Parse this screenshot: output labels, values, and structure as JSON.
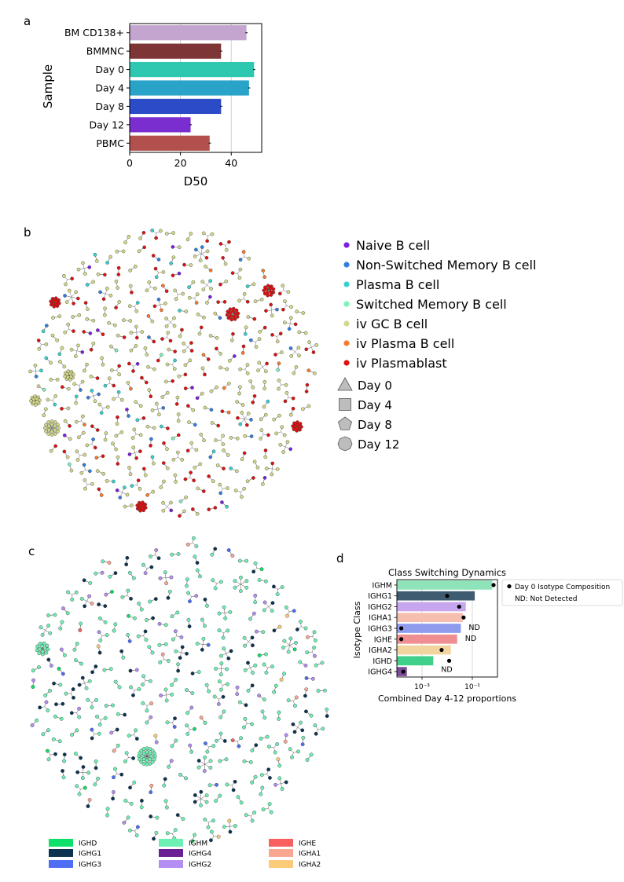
{
  "panel_labels": {
    "a": "a",
    "b": "b",
    "c": "c",
    "d": "d"
  },
  "chart_data": [
    {
      "type": "bar",
      "orientation": "horizontal",
      "panel": "a",
      "title": "",
      "xlabel": "D50",
      "ylabel": "Sample",
      "categories": [
        "BM CD138+",
        "BMMNC",
        "Day 0",
        "Day 4",
        "Day 8",
        "Day 12",
        "PBMC"
      ],
      "values": [
        46,
        36,
        49,
        47,
        36,
        24,
        31.5
      ],
      "colors": [
        "#c3a5cf",
        "#7d3535",
        "#2ec8b0",
        "#2aa3c9",
        "#2b4bc7",
        "#7b2ecf",
        "#b1504c"
      ],
      "xlim": [
        0,
        52
      ],
      "xticks": [
        0,
        20,
        40
      ],
      "grid": true
    },
    {
      "type": "network",
      "panel": "b",
      "legend_cell_types": [
        {
          "label": "Naive B cell",
          "color": "#7b1fe0"
        },
        {
          "label": "Non-Switched Memory B cell",
          "color": "#2f7fe0"
        },
        {
          "label": "Plasma B cell",
          "color": "#35d2d2"
        },
        {
          "label": "Switched Memory B cell",
          "color": "#7ef2b8"
        },
        {
          "label": "iv GC B cell",
          "color": "#d3d98a"
        },
        {
          "label": "iv Plasma B cell",
          "color": "#f97a2e"
        },
        {
          "label": "iv Plasmablast",
          "color": "#e01010"
        }
      ],
      "legend_timepoints": [
        {
          "label": "Day 0",
          "shape": "triangle"
        },
        {
          "label": "Day 4",
          "shape": "square"
        },
        {
          "label": "Day 8",
          "shape": "pentagon"
        },
        {
          "label": "Day 12",
          "shape": "octagon"
        }
      ]
    },
    {
      "type": "network",
      "panel": "c",
      "legend_isotypes": [
        {
          "label": "IGHD",
          "color": "#0ee06a"
        },
        {
          "label": "IGHM",
          "color": "#6ef0b4"
        },
        {
          "label": "IGHE",
          "color": "#f85f5f"
        },
        {
          "label": "IGHG1",
          "color": "#0c3352"
        },
        {
          "label": "IGHG4",
          "color": "#6b1f94"
        },
        {
          "label": "IGHA1",
          "color": "#f9a790"
        },
        {
          "label": "IGHG3",
          "color": "#4f6ef5"
        },
        {
          "label": "IGHG2",
          "color": "#b48ef2"
        },
        {
          "label": "IGHA2",
          "color": "#fbcb7a"
        }
      ]
    },
    {
      "type": "bar",
      "orientation": "horizontal",
      "panel": "d",
      "title": "Class Switching Dynamics",
      "xlabel": "Combined Day 4-12 proportions",
      "ylabel": "Isotype Class",
      "xscale": "log",
      "xlim": [
        0.0001,
        1.0
      ],
      "xticks": [
        0.001,
        0.1
      ],
      "xtick_labels": [
        "10⁻³",
        "10⁻¹"
      ],
      "categories": [
        "IGHM",
        "IGHG1",
        "IGHG2",
        "IGHA1",
        "IGHG3",
        "IGHE",
        "IGHA2",
        "IGHD",
        "IGHG4"
      ],
      "values": [
        0.62,
        0.125,
        0.055,
        0.042,
        0.035,
        0.025,
        0.014,
        0.0028,
        0.00025
      ],
      "colors": [
        "#8fe3b8",
        "#3f5b70",
        "#c7a6ef",
        "#f6beaf",
        "#8f9cee",
        "#f08f91",
        "#f2d4a1",
        "#3fd08a",
        "#7f4a9c"
      ],
      "day0_points": [
        0.7,
        0.01,
        0.03,
        0.045,
        0.00015,
        0.00015,
        0.006,
        0.012,
        0.00018
      ],
      "nd_labels": [
        "",
        "",
        "",
        "",
        "ND",
        "ND",
        "",
        "ND",
        ""
      ],
      "legend": {
        "marker_label": "Day 0 Isotype Composition",
        "text_label": "ND: Not Detected",
        "placement": "right"
      }
    }
  ]
}
